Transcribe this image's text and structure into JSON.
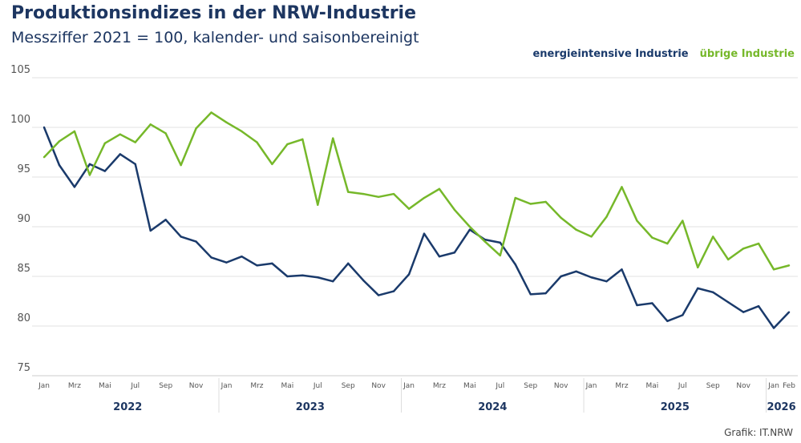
{
  "chart_data": {
    "type": "line",
    "title": "Produktionsindizes in der NRW-Industrie",
    "subtitle": "Messziffer 2021 = 100, kalender- und saisonbereinigt",
    "ylim": [
      75,
      105
    ],
    "yticks": [
      75,
      80,
      85,
      90,
      95,
      100,
      105
    ],
    "grid": true,
    "legend_position": "top-right",
    "x_start": "2022-01",
    "x_end": "2026-02",
    "month_tick_labels": [
      "Jan",
      "Mrz",
      "Mai",
      "Jul",
      "Sep",
      "Nov"
    ],
    "final_year_tick_labels": [
      "Jan",
      "Feb"
    ],
    "years": [
      "2022",
      "2023",
      "2024",
      "2025",
      "2026"
    ],
    "series": [
      {
        "name": "energieintensive Industrie",
        "color": "#1a3a6b",
        "values": [
          100,
          96.2,
          94.0,
          96.3,
          95.6,
          97.3,
          96.3,
          89.6,
          90.7,
          89.0,
          88.5,
          86.9,
          86.4,
          87.0,
          86.1,
          86.3,
          85.0,
          85.1,
          84.9,
          84.5,
          86.3,
          84.6,
          83.1,
          83.5,
          85.2,
          89.3,
          87.0,
          87.4,
          89.7,
          88.7,
          88.4,
          86.2,
          83.2,
          83.3,
          85.0,
          85.5,
          84.9,
          84.5,
          85.7,
          82.1,
          82.3,
          80.5,
          81.1,
          83.8,
          83.4,
          82.4,
          81.4,
          82.0,
          79.8,
          81.4
        ]
      },
      {
        "name": "übrige Industrie",
        "color": "#76b82a",
        "values": [
          97.0,
          98.6,
          99.6,
          95.2,
          98.4,
          99.3,
          98.5,
          100.3,
          99.4,
          96.2,
          99.9,
          101.5,
          100.5,
          99.6,
          98.5,
          96.3,
          98.3,
          98.8,
          92.2,
          98.9,
          93.5,
          93.3,
          93.0,
          93.3,
          91.8,
          92.9,
          93.8,
          91.7,
          90.0,
          88.5,
          87.1,
          92.9,
          92.3,
          92.5,
          90.9,
          89.7,
          89.0,
          91.0,
          94.0,
          90.6,
          88.9,
          88.3,
          90.6,
          85.9,
          89.0,
          86.7,
          87.8,
          88.3,
          85.7,
          86.1
        ]
      }
    ]
  },
  "source": "Grafik: IT.NRW"
}
